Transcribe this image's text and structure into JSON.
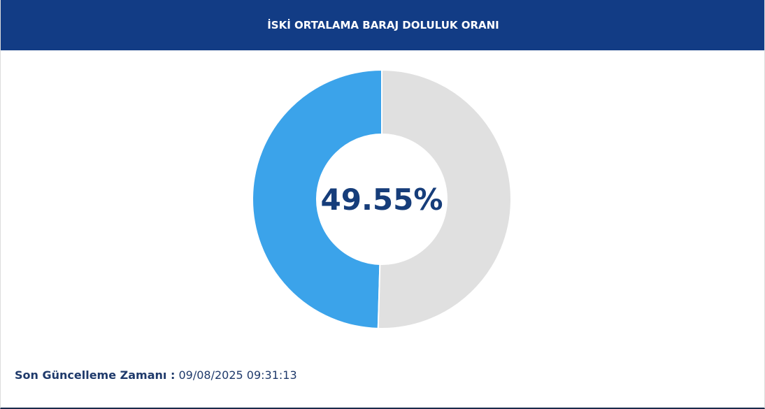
{
  "chart_data": {
    "type": "donut",
    "title": "İSKİ ORTALAMA BARAJ DOLULUK ORANI",
    "values": [
      49.55,
      50.45
    ],
    "value_labels": [
      "49.55%",
      null
    ],
    "colors": [
      "#3ba3ea",
      "#e0e0e0"
    ]
  },
  "footer": {
    "label": "Son Güncelleme Zamanı :",
    "value": "09/08/2025 09:31:13"
  }
}
